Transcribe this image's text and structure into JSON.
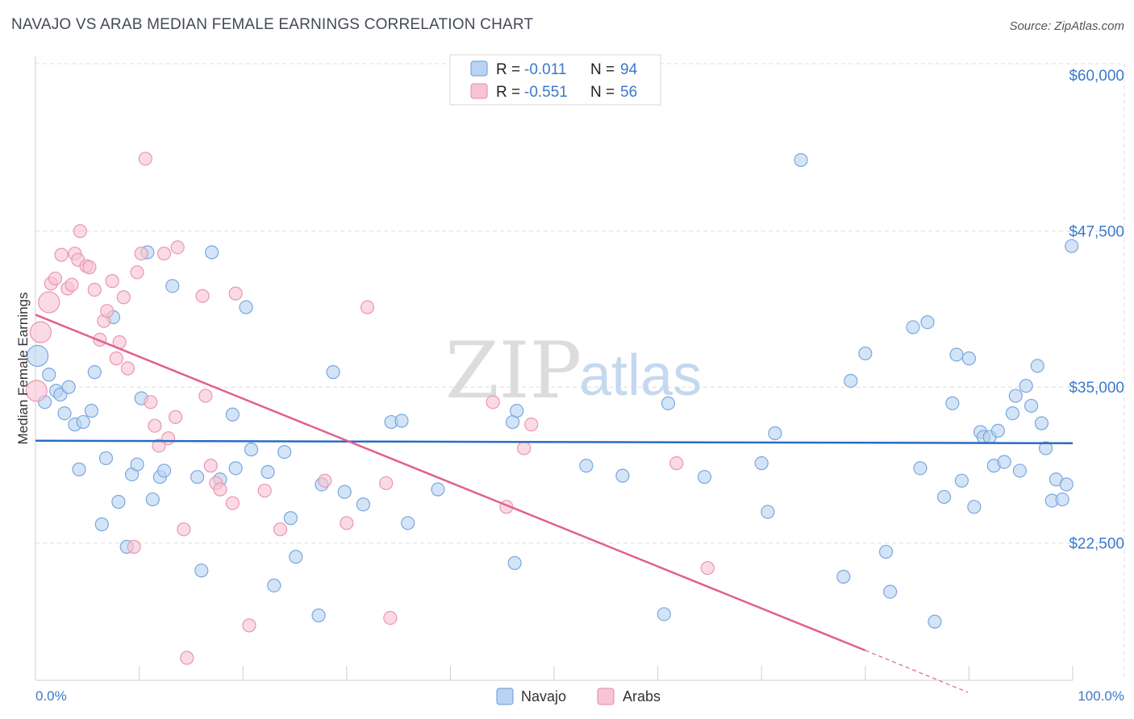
{
  "title": "NAVAJO VS ARAB MEDIAN FEMALE EARNINGS CORRELATION CHART",
  "source": "Source: ZipAtlas.com",
  "colors": {
    "navajo_fill": "#b9d3f2",
    "navajo_stroke": "#7aa7de",
    "navajo_line": "#2a6cc4",
    "arabs_fill": "#f7c4d4",
    "arabs_stroke": "#ea96b2",
    "arabs_line": "#e0608f",
    "tick_label": "#3b79c9",
    "grid": "#dddddd"
  },
  "legend": {
    "rows": [
      {
        "r_label": "R =",
        "r_value": "-0.011",
        "n_label": "N =",
        "n_value": "94"
      },
      {
        "r_label": "R =",
        "r_value": "-0.551",
        "n_label": "N =",
        "n_value": "56"
      }
    ]
  },
  "watermark": {
    "zip": "ZIP",
    "atlas": "atlas"
  },
  "chart_data": {
    "type": "scatter",
    "title": "NAVAJO VS ARAB MEDIAN FEMALE EARNINGS CORRELATION CHART",
    "xlabel": "",
    "ylabel": "Median Female Earnings",
    "xlim": [
      0,
      100
    ],
    "ylim": [
      11500,
      61500
    ],
    "x_tick_labels": [
      "0.0%",
      "100.0%"
    ],
    "y_ticks": [
      22500,
      35000,
      47500,
      60000
    ],
    "y_tick_labels": [
      "$22,500",
      "$35,000",
      "$47,500",
      "$60,000"
    ],
    "grid": true,
    "legend_position": "top-center",
    "series": [
      {
        "name": "Navajo",
        "trend": {
          "x": [
            0,
            100
          ],
          "y": [
            30700,
            30500
          ]
        },
        "points": [
          {
            "x": 0.2,
            "y": 37500,
            "big": true
          },
          {
            "x": 0.9,
            "y": 33800
          },
          {
            "x": 1.3,
            "y": 36000
          },
          {
            "x": 2.0,
            "y": 34700
          },
          {
            "x": 2.4,
            "y": 34400
          },
          {
            "x": 2.8,
            "y": 32900
          },
          {
            "x": 3.2,
            "y": 35000
          },
          {
            "x": 3.8,
            "y": 32000
          },
          {
            "x": 4.2,
            "y": 28400
          },
          {
            "x": 4.6,
            "y": 32200
          },
          {
            "x": 5.4,
            "y": 33100
          },
          {
            "x": 5.7,
            "y": 36200
          },
          {
            "x": 6.4,
            "y": 24000
          },
          {
            "x": 6.8,
            "y": 29300
          },
          {
            "x": 7.5,
            "y": 40600
          },
          {
            "x": 8.0,
            "y": 25800
          },
          {
            "x": 8.8,
            "y": 22200
          },
          {
            "x": 9.3,
            "y": 28000
          },
          {
            "x": 9.8,
            "y": 28800
          },
          {
            "x": 10.2,
            "y": 34100
          },
          {
            "x": 10.8,
            "y": 45800
          },
          {
            "x": 11.3,
            "y": 26000
          },
          {
            "x": 12.0,
            "y": 27800
          },
          {
            "x": 12.4,
            "y": 28300
          },
          {
            "x": 13.2,
            "y": 43100
          },
          {
            "x": 15.6,
            "y": 27800
          },
          {
            "x": 16.0,
            "y": 20300
          },
          {
            "x": 17.0,
            "y": 45800
          },
          {
            "x": 17.8,
            "y": 27600
          },
          {
            "x": 19.0,
            "y": 32800
          },
          {
            "x": 19.3,
            "y": 28500
          },
          {
            "x": 20.3,
            "y": 41400
          },
          {
            "x": 20.8,
            "y": 30000
          },
          {
            "x": 22.4,
            "y": 28200
          },
          {
            "x": 23.0,
            "y": 19100
          },
          {
            "x": 24.0,
            "y": 29800
          },
          {
            "x": 24.6,
            "y": 24500
          },
          {
            "x": 25.1,
            "y": 21400
          },
          {
            "x": 27.3,
            "y": 16700
          },
          {
            "x": 27.6,
            "y": 27200
          },
          {
            "x": 28.7,
            "y": 36200
          },
          {
            "x": 29.8,
            "y": 26600
          },
          {
            "x": 31.6,
            "y": 25600
          },
          {
            "x": 34.3,
            "y": 32200
          },
          {
            "x": 35.3,
            "y": 32300
          },
          {
            "x": 35.9,
            "y": 24100
          },
          {
            "x": 38.8,
            "y": 26800
          },
          {
            "x": 46.0,
            "y": 32200
          },
          {
            "x": 46.4,
            "y": 33100
          },
          {
            "x": 46.2,
            "y": 20900
          },
          {
            "x": 53.1,
            "y": 28700
          },
          {
            "x": 56.6,
            "y": 27900
          },
          {
            "x": 60.6,
            "y": 16800
          },
          {
            "x": 61.0,
            "y": 33700
          },
          {
            "x": 64.5,
            "y": 27800
          },
          {
            "x": 70.0,
            "y": 28900
          },
          {
            "x": 70.6,
            "y": 25000
          },
          {
            "x": 71.3,
            "y": 31300
          },
          {
            "x": 73.8,
            "y": 53200
          },
          {
            "x": 77.9,
            "y": 19800
          },
          {
            "x": 78.6,
            "y": 35500
          },
          {
            "x": 80.0,
            "y": 37700
          },
          {
            "x": 82.0,
            "y": 21800
          },
          {
            "x": 82.4,
            "y": 18600
          },
          {
            "x": 84.6,
            "y": 39800
          },
          {
            "x": 85.3,
            "y": 28500
          },
          {
            "x": 86.0,
            "y": 40200
          },
          {
            "x": 86.7,
            "y": 16200
          },
          {
            "x": 87.6,
            "y": 26200
          },
          {
            "x": 88.4,
            "y": 33700
          },
          {
            "x": 88.8,
            "y": 37600
          },
          {
            "x": 89.3,
            "y": 27500
          },
          {
            "x": 90.0,
            "y": 37300
          },
          {
            "x": 90.5,
            "y": 25400
          },
          {
            "x": 91.1,
            "y": 31400
          },
          {
            "x": 91.4,
            "y": 31000
          },
          {
            "x": 92.0,
            "y": 31000
          },
          {
            "x": 92.4,
            "y": 28700
          },
          {
            "x": 92.8,
            "y": 31500
          },
          {
            "x": 93.4,
            "y": 29000
          },
          {
            "x": 94.2,
            "y": 32900
          },
          {
            "x": 94.5,
            "y": 34300
          },
          {
            "x": 94.9,
            "y": 28300
          },
          {
            "x": 95.5,
            "y": 35100
          },
          {
            "x": 96.0,
            "y": 33500
          },
          {
            "x": 96.6,
            "y": 36700
          },
          {
            "x": 97.0,
            "y": 32100
          },
          {
            "x": 97.4,
            "y": 30100
          },
          {
            "x": 98.0,
            "y": 25900
          },
          {
            "x": 98.4,
            "y": 27600
          },
          {
            "x": 99.0,
            "y": 26000
          },
          {
            "x": 99.4,
            "y": 27200
          },
          {
            "x": 99.9,
            "y": 46300
          }
        ]
      },
      {
        "name": "Arabs",
        "trend": {
          "x": [
            0,
            80
          ],
          "y": 40800,
          "y_end": 13900,
          "dashed_to": {
            "x": 100,
            "y": 7100
          }
        },
        "points": [
          {
            "x": 0.1,
            "y": 34700,
            "big": true
          },
          {
            "x": 0.5,
            "y": 39400,
            "big": true
          },
          {
            "x": 1.3,
            "y": 41800,
            "big": true
          },
          {
            "x": 1.5,
            "y": 43300
          },
          {
            "x": 1.9,
            "y": 43700
          },
          {
            "x": 2.5,
            "y": 45600
          },
          {
            "x": 3.1,
            "y": 42900
          },
          {
            "x": 3.5,
            "y": 43200
          },
          {
            "x": 3.8,
            "y": 45700
          },
          {
            "x": 4.1,
            "y": 45200
          },
          {
            "x": 4.3,
            "y": 47500
          },
          {
            "x": 4.9,
            "y": 44700
          },
          {
            "x": 5.2,
            "y": 44600
          },
          {
            "x": 5.7,
            "y": 42800
          },
          {
            "x": 6.2,
            "y": 38800
          },
          {
            "x": 6.6,
            "y": 40300
          },
          {
            "x": 6.9,
            "y": 41100
          },
          {
            "x": 7.4,
            "y": 43500
          },
          {
            "x": 7.8,
            "y": 37300
          },
          {
            "x": 8.1,
            "y": 38600
          },
          {
            "x": 8.5,
            "y": 42200
          },
          {
            "x": 8.9,
            "y": 36500
          },
          {
            "x": 9.5,
            "y": 22200
          },
          {
            "x": 9.8,
            "y": 44200
          },
          {
            "x": 10.2,
            "y": 45700
          },
          {
            "x": 10.6,
            "y": 53300
          },
          {
            "x": 11.1,
            "y": 33800
          },
          {
            "x": 11.5,
            "y": 31900
          },
          {
            "x": 11.9,
            "y": 30300
          },
          {
            "x": 12.4,
            "y": 45700
          },
          {
            "x": 12.8,
            "y": 30900
          },
          {
            "x": 13.5,
            "y": 32600
          },
          {
            "x": 13.7,
            "y": 46200
          },
          {
            "x": 14.3,
            "y": 23600
          },
          {
            "x": 14.6,
            "y": 13300
          },
          {
            "x": 16.1,
            "y": 42300
          },
          {
            "x": 16.4,
            "y": 34300
          },
          {
            "x": 16.9,
            "y": 28700
          },
          {
            "x": 17.4,
            "y": 27300
          },
          {
            "x": 17.8,
            "y": 26800
          },
          {
            "x": 19.0,
            "y": 25700
          },
          {
            "x": 19.3,
            "y": 42500
          },
          {
            "x": 20.6,
            "y": 15900
          },
          {
            "x": 22.1,
            "y": 26700
          },
          {
            "x": 23.6,
            "y": 23600
          },
          {
            "x": 27.9,
            "y": 27500
          },
          {
            "x": 30.0,
            "y": 24100
          },
          {
            "x": 32.0,
            "y": 41400
          },
          {
            "x": 33.8,
            "y": 27300
          },
          {
            "x": 34.2,
            "y": 16500
          },
          {
            "x": 44.1,
            "y": 33800
          },
          {
            "x": 45.4,
            "y": 25400
          },
          {
            "x": 47.1,
            "y": 30100
          },
          {
            "x": 47.8,
            "y": 32000
          },
          {
            "x": 61.8,
            "y": 28900
          },
          {
            "x": 64.8,
            "y": 20500
          }
        ]
      }
    ]
  },
  "bottom_legend": [
    {
      "label": "Navajo"
    },
    {
      "label": "Arabs"
    }
  ]
}
